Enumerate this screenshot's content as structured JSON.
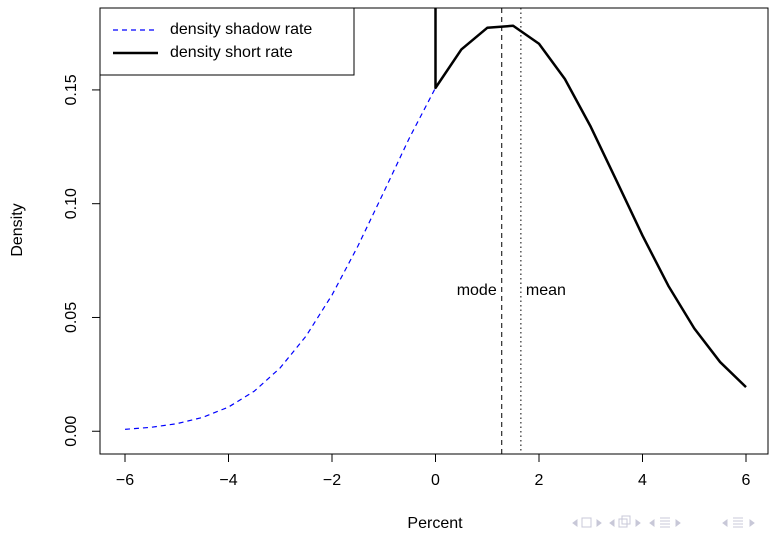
{
  "chart_data": {
    "type": "line",
    "xlabel": "Percent",
    "ylabel": "Density",
    "xlim": [
      -6.48,
      6.48
    ],
    "ylim": [
      -0.01,
      0.186
    ],
    "xticks": [
      {
        "value": -6,
        "label": "−6"
      },
      {
        "value": -4,
        "label": "−4"
      },
      {
        "value": -2,
        "label": "−2"
      },
      0,
      2,
      4,
      6
    ],
    "yticks": [
      {
        "value": 0,
        "label": "0.00"
      },
      0.05,
      {
        "value": 0.1,
        "label": "0.10"
      },
      0.15
    ],
    "legend": "top-left",
    "series": [
      {
        "name": "density shadow rate",
        "color": "#0000ff",
        "style": "dashed",
        "x": [
          -6,
          -5.5,
          -5,
          -4.5,
          -4,
          -3.5,
          -3,
          -2.5,
          -2,
          -1.5,
          -1,
          -0.5,
          0
        ],
        "values": [
          0.00084,
          0.00171,
          0.00331,
          0.00608,
          0.01063,
          0.01764,
          0.02788,
          0.04188,
          0.05986,
          0.08135,
          0.1051,
          0.1291,
          0.1509
        ]
      },
      {
        "name": "density short rate",
        "color": "#000000",
        "style": "solid",
        "x": [
          0,
          0,
          0.5,
          1,
          1.5,
          2,
          2.5,
          3,
          3.5,
          4,
          4.5,
          5,
          5.5,
          6
        ],
        "values": [
          0.186,
          0.1509,
          0.1678,
          0.1773,
          0.1782,
          0.1703,
          0.1548,
          0.1338,
          0.11,
          0.086,
          0.0639,
          0.0452,
          0.0304,
          0.0194
        ]
      }
    ],
    "vlines": [
      {
        "label": "mode",
        "x": 1.28,
        "style": "dashed",
        "side": "left"
      },
      {
        "label": "mean",
        "x": 1.65,
        "style": "dotted",
        "side": "right"
      }
    ]
  }
}
